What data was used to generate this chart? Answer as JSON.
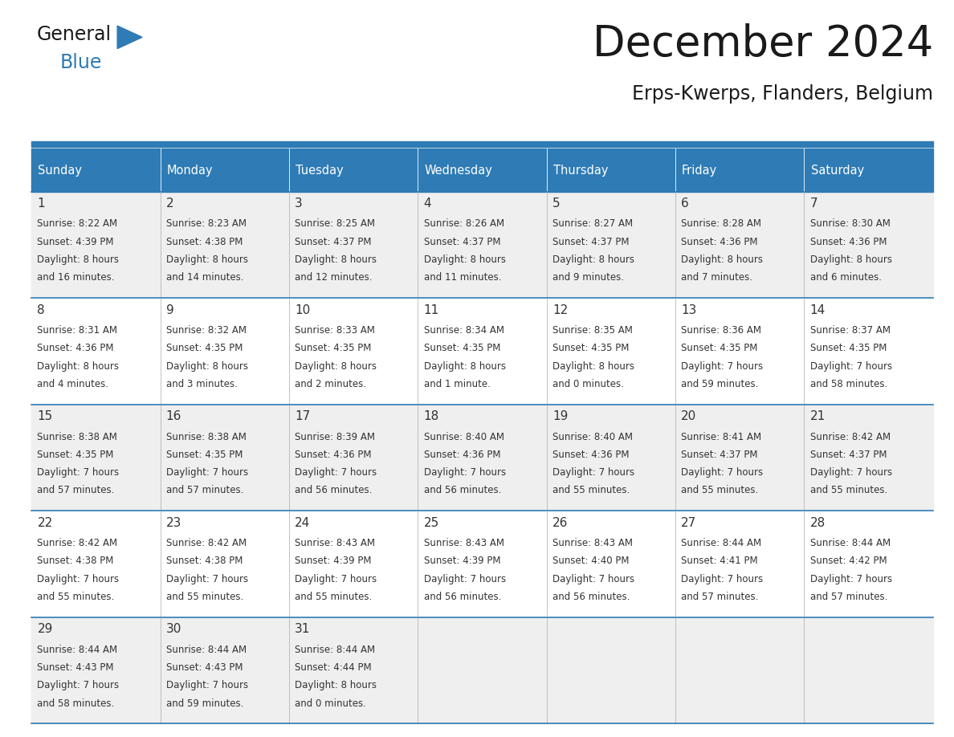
{
  "title": "December 2024",
  "subtitle": "Erps-Kwerps, Flanders, Belgium",
  "header_bg_color": "#2E7BB5",
  "header_text_color": "#FFFFFF",
  "day_names": [
    "Sunday",
    "Monday",
    "Tuesday",
    "Wednesday",
    "Thursday",
    "Friday",
    "Saturday"
  ],
  "row_bg_colors": [
    "#EFEFEF",
    "#FFFFFF"
  ],
  "border_color": "#2E7BB5",
  "cell_border_color": "#2E7BB5",
  "text_color": "#333333",
  "title_color": "#1A1A1A",
  "logo_general_color": "#1A1A1A",
  "logo_blue_color": "#2E7BB5",
  "weeks": [
    [
      {
        "day": 1,
        "sunrise": "8:22 AM",
        "sunset": "4:39 PM",
        "daylight_hours": "8 hours",
        "daylight_min": "and 16 minutes."
      },
      {
        "day": 2,
        "sunrise": "8:23 AM",
        "sunset": "4:38 PM",
        "daylight_hours": "8 hours",
        "daylight_min": "and 14 minutes."
      },
      {
        "day": 3,
        "sunrise": "8:25 AM",
        "sunset": "4:37 PM",
        "daylight_hours": "8 hours",
        "daylight_min": "and 12 minutes."
      },
      {
        "day": 4,
        "sunrise": "8:26 AM",
        "sunset": "4:37 PM",
        "daylight_hours": "8 hours",
        "daylight_min": "and 11 minutes."
      },
      {
        "day": 5,
        "sunrise": "8:27 AM",
        "sunset": "4:37 PM",
        "daylight_hours": "8 hours",
        "daylight_min": "and 9 minutes."
      },
      {
        "day": 6,
        "sunrise": "8:28 AM",
        "sunset": "4:36 PM",
        "daylight_hours": "8 hours",
        "daylight_min": "and 7 minutes."
      },
      {
        "day": 7,
        "sunrise": "8:30 AM",
        "sunset": "4:36 PM",
        "daylight_hours": "8 hours",
        "daylight_min": "and 6 minutes."
      }
    ],
    [
      {
        "day": 8,
        "sunrise": "8:31 AM",
        "sunset": "4:36 PM",
        "daylight_hours": "8 hours",
        "daylight_min": "and 4 minutes."
      },
      {
        "day": 9,
        "sunrise": "8:32 AM",
        "sunset": "4:35 PM",
        "daylight_hours": "8 hours",
        "daylight_min": "and 3 minutes."
      },
      {
        "day": 10,
        "sunrise": "8:33 AM",
        "sunset": "4:35 PM",
        "daylight_hours": "8 hours",
        "daylight_min": "and 2 minutes."
      },
      {
        "day": 11,
        "sunrise": "8:34 AM",
        "sunset": "4:35 PM",
        "daylight_hours": "8 hours",
        "daylight_min": "and 1 minute."
      },
      {
        "day": 12,
        "sunrise": "8:35 AM",
        "sunset": "4:35 PM",
        "daylight_hours": "8 hours",
        "daylight_min": "and 0 minutes."
      },
      {
        "day": 13,
        "sunrise": "8:36 AM",
        "sunset": "4:35 PM",
        "daylight_hours": "7 hours",
        "daylight_min": "and 59 minutes."
      },
      {
        "day": 14,
        "sunrise": "8:37 AM",
        "sunset": "4:35 PM",
        "daylight_hours": "7 hours",
        "daylight_min": "and 58 minutes."
      }
    ],
    [
      {
        "day": 15,
        "sunrise": "8:38 AM",
        "sunset": "4:35 PM",
        "daylight_hours": "7 hours",
        "daylight_min": "and 57 minutes."
      },
      {
        "day": 16,
        "sunrise": "8:38 AM",
        "sunset": "4:35 PM",
        "daylight_hours": "7 hours",
        "daylight_min": "and 57 minutes."
      },
      {
        "day": 17,
        "sunrise": "8:39 AM",
        "sunset": "4:36 PM",
        "daylight_hours": "7 hours",
        "daylight_min": "and 56 minutes."
      },
      {
        "day": 18,
        "sunrise": "8:40 AM",
        "sunset": "4:36 PM",
        "daylight_hours": "7 hours",
        "daylight_min": "and 56 minutes."
      },
      {
        "day": 19,
        "sunrise": "8:40 AM",
        "sunset": "4:36 PM",
        "daylight_hours": "7 hours",
        "daylight_min": "and 55 minutes."
      },
      {
        "day": 20,
        "sunrise": "8:41 AM",
        "sunset": "4:37 PM",
        "daylight_hours": "7 hours",
        "daylight_min": "and 55 minutes."
      },
      {
        "day": 21,
        "sunrise": "8:42 AM",
        "sunset": "4:37 PM",
        "daylight_hours": "7 hours",
        "daylight_min": "and 55 minutes."
      }
    ],
    [
      {
        "day": 22,
        "sunrise": "8:42 AM",
        "sunset": "4:38 PM",
        "daylight_hours": "7 hours",
        "daylight_min": "and 55 minutes."
      },
      {
        "day": 23,
        "sunrise": "8:42 AM",
        "sunset": "4:38 PM",
        "daylight_hours": "7 hours",
        "daylight_min": "and 55 minutes."
      },
      {
        "day": 24,
        "sunrise": "8:43 AM",
        "sunset": "4:39 PM",
        "daylight_hours": "7 hours",
        "daylight_min": "and 55 minutes."
      },
      {
        "day": 25,
        "sunrise": "8:43 AM",
        "sunset": "4:39 PM",
        "daylight_hours": "7 hours",
        "daylight_min": "and 56 minutes."
      },
      {
        "day": 26,
        "sunrise": "8:43 AM",
        "sunset": "4:40 PM",
        "daylight_hours": "7 hours",
        "daylight_min": "and 56 minutes."
      },
      {
        "day": 27,
        "sunrise": "8:44 AM",
        "sunset": "4:41 PM",
        "daylight_hours": "7 hours",
        "daylight_min": "and 57 minutes."
      },
      {
        "day": 28,
        "sunrise": "8:44 AM",
        "sunset": "4:42 PM",
        "daylight_hours": "7 hours",
        "daylight_min": "and 57 minutes."
      }
    ],
    [
      {
        "day": 29,
        "sunrise": "8:44 AM",
        "sunset": "4:43 PM",
        "daylight_hours": "7 hours",
        "daylight_min": "and 58 minutes."
      },
      {
        "day": 30,
        "sunrise": "8:44 AM",
        "sunset": "4:43 PM",
        "daylight_hours": "7 hours",
        "daylight_min": "and 59 minutes."
      },
      {
        "day": 31,
        "sunrise": "8:44 AM",
        "sunset": "4:44 PM",
        "daylight_hours": "8 hours",
        "daylight_min": "and 0 minutes."
      },
      null,
      null,
      null,
      null
    ]
  ],
  "figsize": [
    11.88,
    9.18
  ],
  "dpi": 100
}
